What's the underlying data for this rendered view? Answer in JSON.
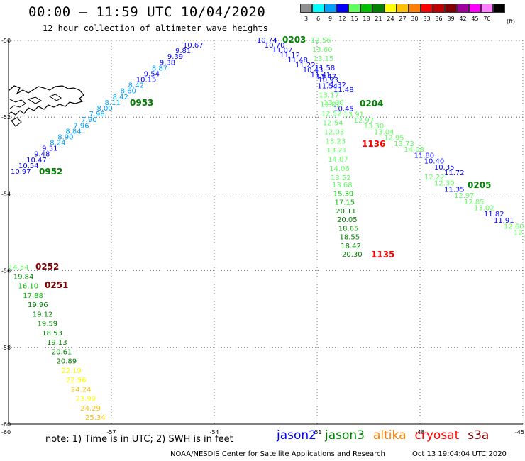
{
  "header": {
    "title": "00:00 – 11:59 UTC 10/04/2020",
    "subtitle": "12 hour collection of altimeter wave heights"
  },
  "colorbar": {
    "unit": "(ft)",
    "bins": [
      {
        "label": "3",
        "color": "#909090"
      },
      {
        "label": "6",
        "color": "#00ffff"
      },
      {
        "label": "9",
        "color": "#00a0ff"
      },
      {
        "label": "12",
        "color": "#0000ff"
      },
      {
        "label": "15",
        "color": "#60ff60"
      },
      {
        "label": "18",
        "color": "#00c000"
      },
      {
        "label": "21",
        "color": "#008000"
      },
      {
        "label": "24",
        "color": "#ffff00"
      },
      {
        "label": "27",
        "color": "#ffc000"
      },
      {
        "label": "30",
        "color": "#ff8000"
      },
      {
        "label": "33",
        "color": "#ff0000"
      },
      {
        "label": "36",
        "color": "#c00000"
      },
      {
        "label": "39",
        "color": "#800000"
      },
      {
        "label": "42",
        "color": "#a000a0"
      },
      {
        "label": "45",
        "color": "#ff00ff"
      },
      {
        "label": "70",
        "color": "#ff80ff"
      },
      {
        "label": "",
        "color": "#000000"
      }
    ]
  },
  "map": {
    "lon_range": [
      -60,
      -45
    ],
    "lat_range": [
      -60,
      -50
    ],
    "x_ticks": [
      "-60",
      "-57",
      "-54",
      "-51",
      "-48",
      "-45"
    ],
    "y_ticks": [
      "-50",
      "-52",
      "-54",
      "-56",
      "-58",
      "-60"
    ],
    "tracks": [
      {
        "satellite": "jason3",
        "time": "0953",
        "time_color": "#008000",
        "readings": [
          "10.67",
          "9.81",
          "9.39",
          "9.38",
          "8.87",
          "9.54",
          "10.15",
          "8.42",
          "8.60",
          "8.42",
          "8.11",
          "8.00",
          "7.98",
          "7.90",
          "7.96",
          "8.84",
          "8.90",
          "8.24",
          "9.31",
          "9.48",
          "10.47",
          "10.54",
          "10.97"
        ]
      },
      {
        "satellite": "jason3",
        "time": "0952",
        "time_color": "#008000",
        "readings": []
      },
      {
        "satellite": "jason2",
        "time": "0203",
        "time_color": "#008000",
        "readings": [
          "10.74",
          "10.70",
          "11.07",
          "11.12",
          "11.48",
          "11.22",
          "10.43",
          "11.41",
          "10.93",
          "11.32",
          "11.48"
        ]
      },
      {
        "satellite": "jason2",
        "time": "0204",
        "time_color": "#008000",
        "readings": [
          "13.00",
          "10.45",
          "13.91",
          "12.97",
          "13.30",
          "13.04",
          "12.95",
          "13.73",
          "14.08",
          "11.80",
          "10.40",
          "10.35",
          "11.72"
        ]
      },
      {
        "satellite": "jason2",
        "time": "0205",
        "time_color": "#008000",
        "readings": [
          "12.22",
          "12.30",
          "11.35",
          "12.97",
          "12.85",
          "13.02",
          "11.82",
          "11.91",
          "12.60",
          "12.07",
          "12"
        ]
      },
      {
        "satellite": "jason3",
        "time": "1136",
        "time_color": "#ff0000",
        "readings": [
          "12.56",
          "13.60",
          "13.15",
          "11.58",
          "11.47",
          "11.54",
          "13.17",
          "13.01",
          "12.52",
          "12.54",
          "12.03",
          "13.23",
          "13.21",
          "14.07",
          "14.06",
          "13.52"
        ]
      },
      {
        "satellite": "jason3",
        "time": "1135",
        "time_color": "#ff0000",
        "readings": [
          "13.68",
          "15.39",
          "17.15",
          "20.11",
          "20.05",
          "18.65",
          "18.55",
          "18.42",
          "20.30"
        ]
      },
      {
        "satellite": "cryosat",
        "time": "0252",
        "time_color": "#800000",
        "readings": [
          "14.54",
          "19.84",
          "16.10",
          "17.88",
          "19.96",
          "19.12",
          "19.59",
          "18.53",
          "19.13",
          "20.61",
          "20.89",
          "22.19",
          "22.96",
          "24.24",
          "23.99",
          "24.29",
          "25.34"
        ]
      },
      {
        "satellite": "cryosat",
        "time": "0251",
        "time_color": "#800000",
        "readings": []
      }
    ]
  },
  "footer": {
    "note": "note: 1) Time is in UTC; 2) SWH is in feet",
    "legend": [
      {
        "label": "jason2",
        "color": "#0000ff"
      },
      {
        "label": "jason3",
        "color": "#008000"
      },
      {
        "label": "altika",
        "color": "#ff8000"
      },
      {
        "label": "cryosat",
        "color": "#ff0000"
      },
      {
        "label": "s3a",
        "color": "#800000"
      }
    ],
    "credit": "NOAA/NESDIS Center for Satellite Applications and Research",
    "timestamp": "Oct 13 19:04:04 UTC 2020"
  }
}
